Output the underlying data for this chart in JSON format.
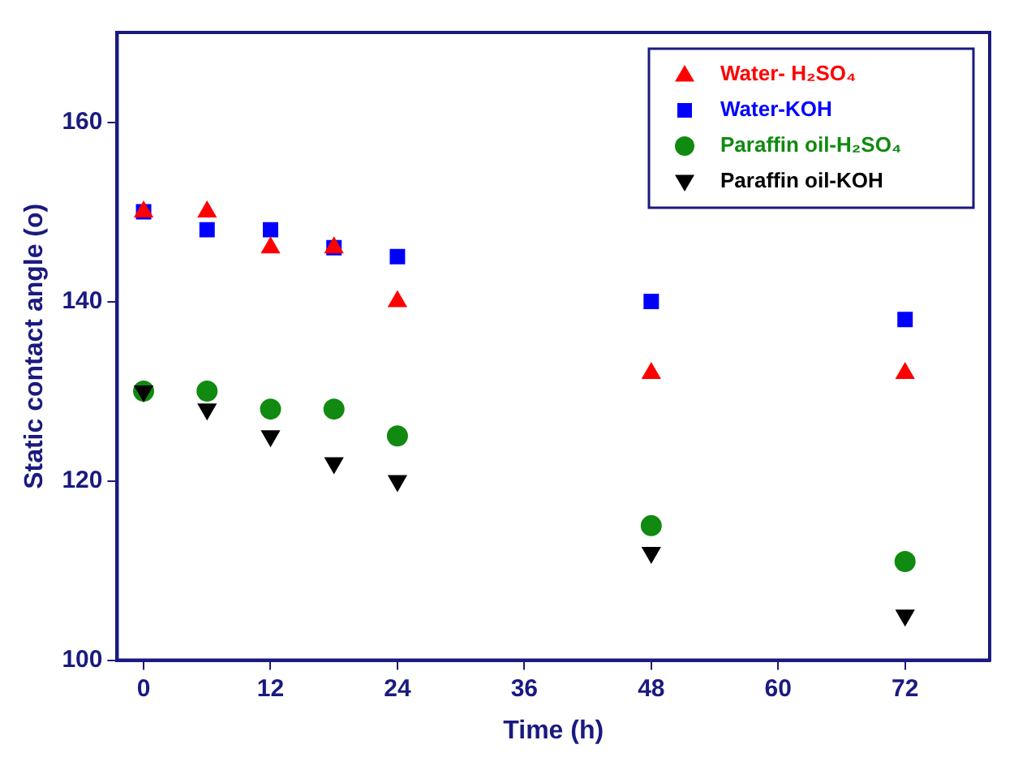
{
  "chart_data": {
    "type": "scatter",
    "xlabel": "Time (h)",
    "ylabel": "Static contact angle (o)",
    "xlim": [
      -2.5,
      80
    ],
    "xticks": [
      0,
      12,
      24,
      36,
      48,
      60,
      72
    ],
    "ylim": [
      100,
      170
    ],
    "yticks": [
      100,
      120,
      140,
      160
    ],
    "grid": false,
    "legend": "top right",
    "x": [
      0,
      6,
      12,
      18,
      24,
      48,
      72
    ],
    "series": [
      {
        "name": "Water- H₂SO₄",
        "color": "#ff0000",
        "marker": "triangle",
        "values": [
          150,
          150,
          146,
          146,
          140,
          132,
          132
        ]
      },
      {
        "name": "Water-KOH",
        "color": "#0000ff",
        "marker": "square",
        "values": [
          150,
          148,
          148,
          146,
          145,
          140,
          138
        ]
      },
      {
        "name": "Paraffin oil-H₂SO₄",
        "color": "#108a10",
        "marker": "circle",
        "values": [
          130,
          130,
          128,
          128,
          125,
          115,
          111
        ]
      },
      {
        "name": "Paraffin oil-KOH",
        "color": "#000000",
        "marker": "triangle-down",
        "values": [
          130,
          128,
          125,
          122,
          120,
          112,
          105
        ]
      }
    ]
  }
}
